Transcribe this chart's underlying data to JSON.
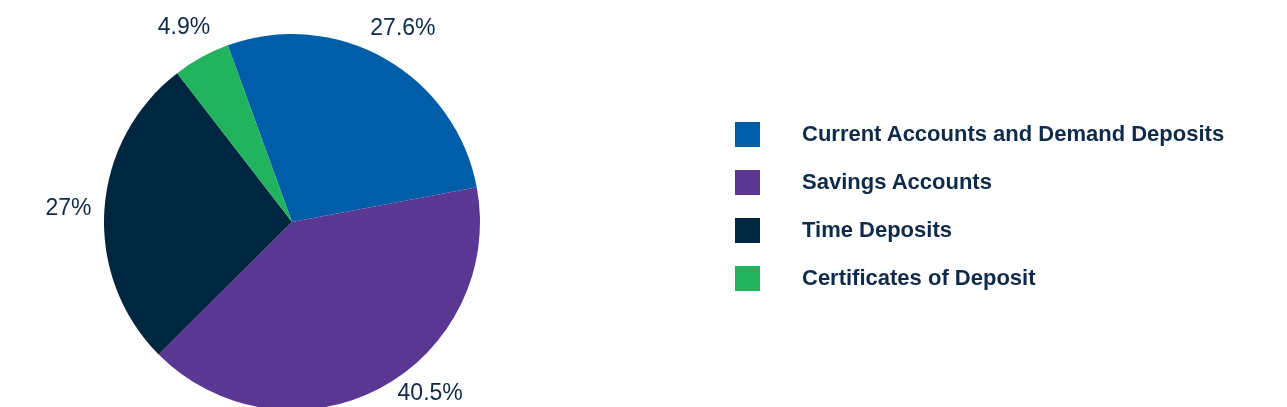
{
  "chart_data": {
    "type": "pie",
    "categories": [
      "Current Accounts and Demand Deposits",
      "Savings Accounts",
      "Time Deposits",
      "Certificates of Deposit"
    ],
    "values": [
      27.6,
      40.5,
      27,
      4.9
    ],
    "colors": [
      "#005ea8",
      "#5b3794",
      "#002640",
      "#22b35f"
    ],
    "value_labels": [
      "27.6%",
      "40.5%",
      "27%",
      "4.9%"
    ],
    "legend": "right"
  }
}
